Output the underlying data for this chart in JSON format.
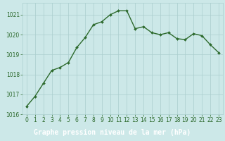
{
  "x": [
    0,
    1,
    2,
    3,
    4,
    5,
    6,
    7,
    8,
    9,
    10,
    11,
    12,
    13,
    14,
    15,
    16,
    17,
    18,
    19,
    20,
    21,
    22,
    23
  ],
  "y": [
    1016.4,
    1016.9,
    1017.55,
    1018.2,
    1018.35,
    1018.6,
    1019.35,
    1019.85,
    1020.5,
    1020.65,
    1021.0,
    1021.2,
    1021.2,
    1020.3,
    1020.4,
    1020.1,
    1020.0,
    1020.1,
    1019.8,
    1019.75,
    1020.05,
    1019.95,
    1019.5,
    1019.1
  ],
  "line_color": "#2d6a2d",
  "marker": "D",
  "marker_size": 2.0,
  "line_width": 1.0,
  "bg_color": "#cce8e8",
  "grid_color": "#aacece",
  "xlabel": "Graphe pression niveau de la mer (hPa)",
  "xlabel_fontsize": 7.0,
  "ylim": [
    1016,
    1021.6
  ],
  "yticks": [
    1016,
    1017,
    1018,
    1019,
    1020,
    1021
  ],
  "xticks": [
    0,
    1,
    2,
    3,
    4,
    5,
    6,
    7,
    8,
    9,
    10,
    11,
    12,
    13,
    14,
    15,
    16,
    17,
    18,
    19,
    20,
    21,
    22,
    23
  ],
  "tick_fontsize": 5.5,
  "tick_color": "#2d6a2d",
  "bottom_bar_color": "#3a7a3a",
  "bottom_text_color": "#ffffff"
}
